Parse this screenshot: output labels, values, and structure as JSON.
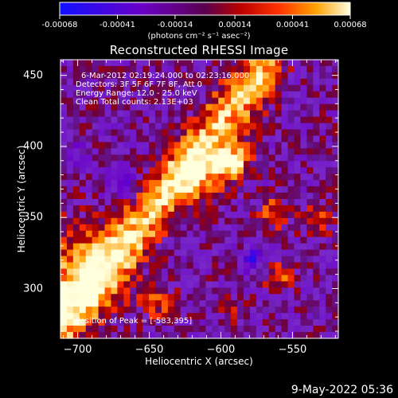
{
  "chart_data": {
    "type": "heatmap",
    "title": "Reconstructed RHESSI Image",
    "xlabel": "Heliocentric X (arcsec)",
    "ylabel": "Heliocentric Y (arcsec)",
    "xlim": [
      -712,
      -518
    ],
    "ylim": [
      265,
      461
    ],
    "x_ticks": [
      "-700",
      "-650",
      "-600",
      "-550"
    ],
    "x_tick_values": [
      -700,
      -650,
      -600,
      -550
    ],
    "y_ticks": [
      "300",
      "350",
      "400",
      "450"
    ],
    "y_tick_values": [
      300,
      350,
      400,
      450
    ],
    "colorbar": {
      "range": [
        -0.00068,
        0.00068
      ],
      "tick_labels": [
        "-0.00068",
        "-0.00041",
        "-0.00014",
        "0.00014",
        "0.00041",
        "0.00068"
      ],
      "tick_values": [
        -0.00068,
        -0.00041,
        -0.00014,
        0.00014,
        0.00041,
        0.00068
      ],
      "unit_label": "(photons cm⁻² s⁻¹ asec⁻²)"
    },
    "annotations": {
      "time_range": "6-Mar-2012 02:19:24.000 to 02:23:16.000",
      "detectors": "Detectors: 3F 5F 6F 7F 8F, Att 0",
      "energy_range": "Energy Range: 12.0 - 25.0 keV",
      "method": "Clean     Total counts: 2.13E+03",
      "peak_position": "Position of Peak = [-583,395]"
    },
    "peak": [
      -583,
      395
    ]
  },
  "footer": {
    "timestamp": "9-May-2022 05:36"
  }
}
